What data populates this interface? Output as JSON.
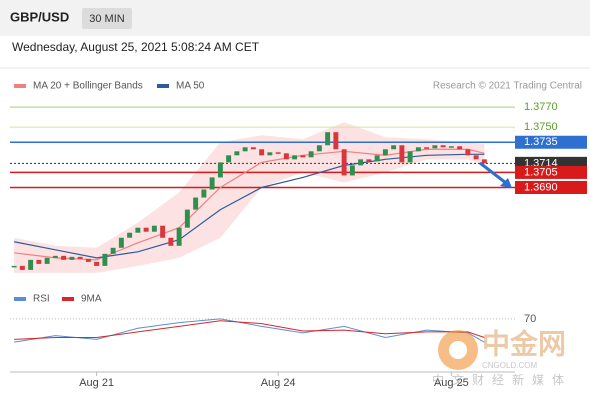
{
  "chart_data": {
    "type": "candlestick",
    "symbol": "GBP/USD",
    "timeframe": "30 MIN",
    "subtitle": "Wednesday, August 25, 2021 5:08:24 AM CET",
    "source": "Research © 2021 Trading Central",
    "categories": [
      null,
      null,
      null,
      null,
      null,
      null,
      null,
      null,
      null,
      null,
      "Aug 21",
      null,
      null,
      null,
      null,
      null,
      null,
      null,
      null,
      null,
      null,
      null,
      null,
      null,
      null,
      null,
      null,
      null,
      null,
      null,
      null,
      null,
      "Aug 24",
      null,
      null,
      null,
      null,
      null,
      null,
      null,
      null,
      null,
      null,
      null,
      null,
      null,
      null,
      null,
      null,
      null,
      null,
      null,
      null,
      "Aug 25",
      null,
      null,
      null,
      null,
      null,
      null
    ],
    "values": [
      1.3612,
      1.3608,
      1.3618,
      1.3614,
      1.362,
      1.3622,
      1.3618,
      1.3621,
      1.3619,
      1.3616,
      1.3612,
      1.3624,
      1.363,
      1.364,
      1.3645,
      1.365,
      1.3646,
      1.3652,
      1.364,
      1.3632,
      1.365,
      1.3668,
      1.368,
      1.3688,
      1.37,
      1.3715,
      1.3722,
      1.3726,
      1.373,
      1.3728,
      1.3722,
      1.3725,
      1.3724,
      1.3718,
      1.3722,
      1.372,
      1.3726,
      1.3732,
      1.3745,
      1.3728,
      1.3702,
      1.3712,
      1.3718,
      1.3716,
      1.3722,
      1.3728,
      1.3732,
      1.3715,
      1.3726,
      1.373,
      1.3729,
      1.3732,
      1.373,
      1.3731,
      1.3728,
      1.3722,
      1.3718,
      1.3714,
      null,
      null
    ],
    "up_color": "#2f8f4e",
    "down_color": "#d9363e",
    "ylim": [
      1.3593,
      1.3782
    ],
    "indicators": [
      {
        "name": "MA 20 + Bollinger Bands",
        "color": "#f08080",
        "band_color": "#fbd5d5",
        "x": [
          0,
          5,
          10,
          15,
          20,
          25,
          30,
          35,
          40,
          45,
          50,
          55,
          57
        ],
        "values": [
          1.3625,
          1.362,
          1.3618,
          1.3635,
          1.365,
          1.369,
          1.3715,
          1.3722,
          1.3726,
          1.3722,
          1.3728,
          1.3728,
          1.3724
        ],
        "upper": [
          1.364,
          1.3632,
          1.363,
          1.3655,
          1.3685,
          1.3735,
          1.3742,
          1.3738,
          1.3755,
          1.374,
          1.3738,
          1.3735,
          1.3733
        ],
        "lower": [
          1.3605,
          1.3605,
          1.3605,
          1.3612,
          1.362,
          1.364,
          1.369,
          1.3705,
          1.3695,
          1.3705,
          1.3718,
          1.3718,
          1.3712
        ]
      },
      {
        "name": "MA 50",
        "color": "#2e5c9a",
        "x": [
          0,
          5,
          10,
          15,
          20,
          25,
          30,
          35,
          40,
          45,
          50,
          55,
          57
        ],
        "values": [
          1.3636,
          1.3628,
          1.362,
          1.3626,
          1.3638,
          1.3668,
          1.369,
          1.37,
          1.3712,
          1.3718,
          1.3722,
          1.3723,
          1.3723
        ]
      }
    ],
    "levels": [
      {
        "value": 1.377,
        "label": "1.3770",
        "color": "#9fd36b",
        "text": "#5aa02c",
        "box": false
      },
      {
        "value": 1.375,
        "label": "1.3750",
        "color": "#d8e39a",
        "text": "#5aa02c",
        "box": false
      },
      {
        "value": 1.3735,
        "label": "1.3735",
        "color": "#2f6fd0",
        "text": "#ffffff",
        "box": true
      },
      {
        "value": 1.3714,
        "label": "1.3714",
        "color": "#333333",
        "text": "#ffffff",
        "box": true
      },
      {
        "value": 1.3705,
        "label": "1.3705",
        "color": "#d91a1a",
        "text": "#ffffff",
        "box": true
      },
      {
        "value": 1.369,
        "label": "1.3690",
        "color": "#d91a1a",
        "text": "#ffffff",
        "box": true
      }
    ],
    "rsi": {
      "ylim": [
        15,
        85
      ],
      "yticks": [
        70
      ],
      "x": [
        0,
        5,
        10,
        15,
        20,
        25,
        30,
        35,
        40,
        45,
        50,
        55,
        57
      ],
      "series": [
        {
          "name": "RSI",
          "color": "#5b8ed6",
          "values": [
            45,
            52,
            48,
            60,
            66,
            70,
            62,
            55,
            62,
            50,
            58,
            55,
            45
          ]
        },
        {
          "name": "9MA",
          "color": "#d62828",
          "values": [
            48,
            50,
            50,
            56,
            62,
            68,
            65,
            57,
            58,
            54,
            56,
            56,
            50
          ]
        }
      ]
    },
    "watermark": {
      "title": "中金网",
      "site": "CNGOLD.COM",
      "tagline": "中文财经新媒体"
    }
  }
}
